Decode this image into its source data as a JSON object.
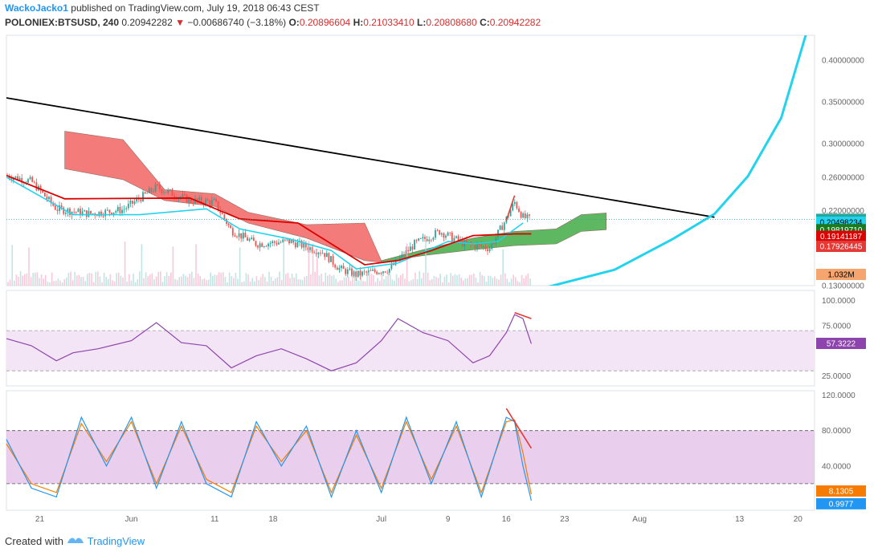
{
  "header": {
    "author": "WackoJacko1",
    "published": "published on TradingView.com, July 19, 2018 06:43 CEST",
    "symbol": "POLONIEX:BTSUSD, 240",
    "price": "0.20942282",
    "change": "−0.00686740 (−3.18%)",
    "o_label": "O:",
    "o": "0.20896604",
    "h_label": "H:",
    "h": "0.21033410",
    "l_label": "L:",
    "l": "0.20808680",
    "c_label": "C:",
    "c": "0.20942282"
  },
  "footer": {
    "created_with": "Created with",
    "brand": "TradingView"
  },
  "colors": {
    "candle_up": "#26a69a",
    "candle_down": "#ef5350",
    "trend": "#000000",
    "parabola": "#22d3ee",
    "tenkan": "#22d3ee",
    "kijun": "#dd0000",
    "cloud_bear": "#f26d6a",
    "cloud_bull": "#4caf50",
    "rsi": "#8e44ad",
    "rsi_band": "#f3e5f5",
    "stoch_band": "#e1bee7",
    "stoch_k": "#2196f3",
    "stoch_d": "#f57c00"
  },
  "chart_data": [
    {
      "type": "candlestick",
      "panel": "price",
      "ylim": [
        0.13,
        0.43
      ],
      "y_ticks": [
        "0.40000000",
        "0.35000000",
        "0.30000000",
        "0.26000000",
        "0.22000000",
        "0.13000000"
      ],
      "x_ticks": [
        "21",
        "Jun",
        "11",
        "18",
        "Jul",
        "9",
        "16",
        "23",
        "Aug",
        "13",
        "20"
      ],
      "labels": [
        {
          "text": "0.20942282",
          "kind": "last_price"
        },
        {
          "text": "03:16:04",
          "kind": "countdown"
        },
        {
          "text": "0.20498234",
          "kind": "tenkan"
        },
        {
          "text": "0.19819710",
          "kind": "span_a"
        },
        {
          "text": "0.19141187",
          "kind": "kijun"
        },
        {
          "text": "0.17926445",
          "kind": "span_b"
        },
        {
          "text": "1.032M",
          "kind": "volume"
        }
      ],
      "price_path": [
        [
          "2018-05-17",
          0.262
        ],
        [
          "2018-05-20",
          0.255
        ],
        [
          "2018-05-23",
          0.222
        ],
        [
          "2018-05-27",
          0.216
        ],
        [
          "2018-05-31",
          0.221
        ],
        [
          "2018-06-04",
          0.248
        ],
        [
          "2018-06-08",
          0.232
        ],
        [
          "2018-06-11",
          0.23
        ],
        [
          "2018-06-13",
          0.196
        ],
        [
          "2018-06-16",
          0.18
        ],
        [
          "2018-06-20",
          0.183
        ],
        [
          "2018-06-24",
          0.17
        ],
        [
          "2018-06-26",
          0.15
        ],
        [
          "2018-06-28",
          0.143
        ],
        [
          "2018-07-02",
          0.15
        ],
        [
          "2018-07-05",
          0.18
        ],
        [
          "2018-07-08",
          0.195
        ],
        [
          "2018-07-11",
          0.18
        ],
        [
          "2018-07-14",
          0.175
        ],
        [
          "2018-07-16",
          0.21
        ],
        [
          "2018-07-17",
          0.23
        ],
        [
          "2018-07-18",
          0.212
        ],
        [
          "2018-07-19",
          0.209
        ]
      ],
      "trendline": [
        [
          "2018-05-17",
          0.355
        ],
        [
          "2018-08-10",
          0.212
        ]
      ],
      "parabola": [
        [
          "2018-07-20",
          0.126
        ],
        [
          "2018-07-29",
          0.149
        ],
        [
          "2018-08-05",
          0.186
        ],
        [
          "2018-08-10",
          0.216
        ],
        [
          "2018-08-14",
          0.261
        ],
        [
          "2018-08-18",
          0.331
        ],
        [
          "2018-08-21",
          0.432
        ]
      ],
      "tenkan_path": [
        [
          "2018-05-17",
          0.26
        ],
        [
          "2018-05-25",
          0.215
        ],
        [
          "2018-06-02",
          0.215
        ],
        [
          "2018-06-10",
          0.222
        ],
        [
          "2018-06-14",
          0.198
        ],
        [
          "2018-06-20",
          0.186
        ],
        [
          "2018-06-25",
          0.172
        ],
        [
          "2018-06-28",
          0.15
        ],
        [
          "2018-07-03",
          0.157
        ],
        [
          "2018-07-09",
          0.183
        ],
        [
          "2018-07-12",
          0.18
        ],
        [
          "2018-07-15",
          0.183
        ],
        [
          "2018-07-18",
          0.205
        ]
      ],
      "kijun_path": [
        [
          "2018-05-17",
          0.262
        ],
        [
          "2018-05-24",
          0.234
        ],
        [
          "2018-06-08",
          0.235
        ],
        [
          "2018-06-14",
          0.21
        ],
        [
          "2018-06-21",
          0.205
        ],
        [
          "2018-06-29",
          0.155
        ],
        [
          "2018-07-03",
          0.16
        ],
        [
          "2018-07-07",
          0.172
        ],
        [
          "2018-07-12",
          0.19
        ],
        [
          "2018-07-17",
          0.192
        ],
        [
          "2018-07-19",
          0.192
        ]
      ],
      "cloud_bear": [
        [
          "2018-05-24",
          0.315,
          0.27
        ],
        [
          "2018-05-31",
          0.305,
          0.257
        ],
        [
          "2018-06-05",
          0.245,
          0.232
        ],
        [
          "2018-06-11",
          0.24,
          0.225
        ],
        [
          "2018-06-15",
          0.218,
          0.205
        ],
        [
          "2018-06-22",
          0.203,
          0.187
        ],
        [
          "2018-06-29",
          0.205,
          0.16
        ],
        [
          "2018-07-01",
          0.16,
          0.158
        ]
      ],
      "cloud_bull": [
        [
          "2018-07-01",
          0.16,
          0.158
        ],
        [
          "2018-07-06",
          0.173,
          0.166
        ],
        [
          "2018-07-12",
          0.187,
          0.173
        ],
        [
          "2018-07-17",
          0.195,
          0.178
        ],
        [
          "2018-07-22",
          0.198,
          0.18
        ],
        [
          "2018-07-25",
          0.215,
          0.195
        ],
        [
          "2018-07-28",
          0.217,
          0.197
        ]
      ],
      "divergence_line": [
        [
          "2018-07-16",
          0.208
        ],
        [
          "2018-07-17",
          0.238
        ]
      ]
    },
    {
      "type": "line",
      "panel": "rsi",
      "ylim": [
        15,
        110
      ],
      "band": [
        30,
        70
      ],
      "y_ticks": [
        "100.0000",
        "75.0000",
        "25.0000"
      ],
      "labels": [
        {
          "text": "57.3222",
          "kind": "last"
        }
      ],
      "series": [
        {
          "values": [
            [
              "2018-05-17",
              62
            ],
            [
              "2018-05-20",
              55
            ],
            [
              "2018-05-23",
              40
            ],
            [
              "2018-05-25",
              48
            ],
            [
              "2018-05-28",
              52
            ],
            [
              "2018-06-01",
              60
            ],
            [
              "2018-06-04",
              78
            ],
            [
              "2018-06-07",
              58
            ],
            [
              "2018-06-10",
              55
            ],
            [
              "2018-06-13",
              33
            ],
            [
              "2018-06-16",
              45
            ],
            [
              "2018-06-19",
              52
            ],
            [
              "2018-06-22",
              42
            ],
            [
              "2018-06-25",
              30
            ],
            [
              "2018-06-28",
              38
            ],
            [
              "2018-07-01",
              60
            ],
            [
              "2018-07-03",
              82
            ],
            [
              "2018-07-06",
              68
            ],
            [
              "2018-07-09",
              60
            ],
            [
              "2018-07-12",
              38
            ],
            [
              "2018-07-14",
              45
            ],
            [
              "2018-07-16",
              68
            ],
            [
              "2018-07-17",
              86
            ],
            [
              "2018-07-18",
              82
            ],
            [
              "2018-07-19",
              57
            ]
          ]
        }
      ],
      "divergence_line": [
        [
          "2018-07-17",
          88
        ],
        [
          "2018-07-19",
          82
        ]
      ]
    },
    {
      "type": "line",
      "panel": "stochastic",
      "ylim": [
        -10,
        125
      ],
      "band": [
        20,
        80
      ],
      "y_ticks": [
        "120.0000",
        "80.0000",
        "40.0000"
      ],
      "labels": [
        {
          "text": "8.1305",
          "kind": "d"
        },
        {
          "text": "0.9977",
          "kind": "k"
        }
      ],
      "series": [
        {
          "values": [
            [
              "2018-05-17",
              70
            ],
            [
              "2018-05-20",
              15
            ],
            [
              "2018-05-23",
              5
            ],
            [
              "2018-05-26",
              95
            ],
            [
              "2018-05-29",
              40
            ],
            [
              "2018-06-01",
              95
            ],
            [
              "2018-06-04",
              15
            ],
            [
              "2018-06-07",
              90
            ],
            [
              "2018-06-10",
              20
            ],
            [
              "2018-06-13",
              5
            ],
            [
              "2018-06-16",
              90
            ],
            [
              "2018-06-19",
              40
            ],
            [
              "2018-06-22",
              85
            ],
            [
              "2018-06-25",
              5
            ],
            [
              "2018-06-28",
              80
            ],
            [
              "2018-07-01",
              10
            ],
            [
              "2018-07-04",
              95
            ],
            [
              "2018-07-07",
              20
            ],
            [
              "2018-07-10",
              90
            ],
            [
              "2018-07-13",
              5
            ],
            [
              "2018-07-16",
              95
            ],
            [
              "2018-07-17",
              90
            ],
            [
              "2018-07-18",
              40
            ],
            [
              "2018-07-19",
              1
            ]
          ]
        },
        {
          "values": [
            [
              "2018-05-17",
              65
            ],
            [
              "2018-05-20",
              20
            ],
            [
              "2018-05-23",
              10
            ],
            [
              "2018-05-26",
              88
            ],
            [
              "2018-05-29",
              45
            ],
            [
              "2018-06-01",
              90
            ],
            [
              "2018-06-04",
              20
            ],
            [
              "2018-06-07",
              85
            ],
            [
              "2018-06-10",
              25
            ],
            [
              "2018-06-13",
              10
            ],
            [
              "2018-06-16",
              85
            ],
            [
              "2018-06-19",
              45
            ],
            [
              "2018-06-22",
              80
            ],
            [
              "2018-06-25",
              10
            ],
            [
              "2018-06-28",
              75
            ],
            [
              "2018-07-01",
              15
            ],
            [
              "2018-07-04",
              90
            ],
            [
              "2018-07-07",
              25
            ],
            [
              "2018-07-10",
              85
            ],
            [
              "2018-07-13",
              10
            ],
            [
              "2018-07-16",
              90
            ],
            [
              "2018-07-17",
              92
            ],
            [
              "2018-07-18",
              55
            ],
            [
              "2018-07-19",
              8
            ]
          ]
        }
      ],
      "divergence_line": [
        [
          "2018-07-16",
          105
        ],
        [
          "2018-07-19",
          60
        ]
      ]
    }
  ]
}
